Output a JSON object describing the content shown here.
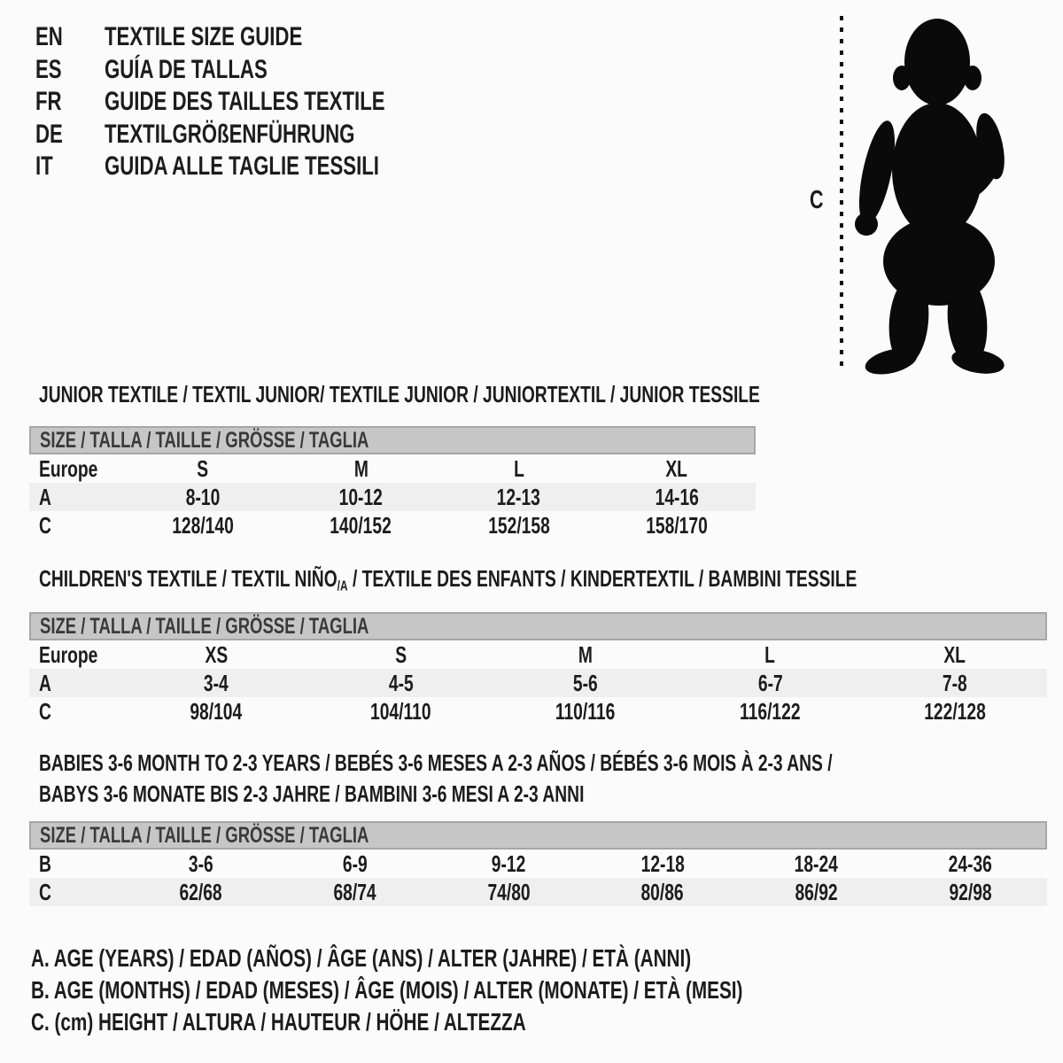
{
  "languages": [
    {
      "code": "EN",
      "title": "TEXTILE SIZE GUIDE"
    },
    {
      "code": "ES",
      "title": "GUÍA DE TALLAS"
    },
    {
      "code": "FR",
      "title": "GUIDE DES TAILLES TEXTILE"
    },
    {
      "code": "DE",
      "title": "TEXTILGRÖßENFÜHRUNG"
    },
    {
      "code": "IT",
      "title": "GUIDA ALLE TAGLIE TESSILI"
    }
  ],
  "figure": {
    "measure_label": "C",
    "icon": "toddler-silhouette"
  },
  "sections": [
    {
      "title": "JUNIOR TEXTILE / TEXTIL JUNIOR/ TEXTILE JUNIOR / JUNIORTEXTIL / JUNIOR TESSILE",
      "table": {
        "header": "SIZE / TALLA / TAILLE / GRÖSSE / TAGLIA",
        "rows": [
          {
            "label": "Europe",
            "cells": [
              "S",
              "M",
              "L",
              "XL"
            ]
          },
          {
            "label": "A",
            "cells": [
              "8-10",
              "10-12",
              "12-13",
              "14-16"
            ]
          },
          {
            "label": "C",
            "cells": [
              "128/140",
              "140/152",
              "152/158",
              "158/170"
            ]
          }
        ]
      }
    },
    {
      "title_pre": "CHILDREN'S TEXTILE / TEXTIL NIÑO",
      "title_sub": "/A",
      "title_post": " / TEXTILE DES ENFANTS / KINDERTEXTIL / BAMBINI TESSILE",
      "table": {
        "header": "SIZE / TALLA / TAILLE / GRÖSSE / TAGLIA",
        "rows": [
          {
            "label": "Europe",
            "cells": [
              "XS",
              "S",
              "M",
              "L",
              "XL"
            ]
          },
          {
            "label": "A",
            "cells": [
              "3-4",
              "4-5",
              "5-6",
              "6-7",
              "7-8"
            ]
          },
          {
            "label": "C",
            "cells": [
              "98/104",
              "104/110",
              "110/116",
              "116/122",
              "122/128"
            ]
          }
        ]
      }
    },
    {
      "title": "BABIES 3-6 MONTH TO 2-3 YEARS / BEBÉS 3-6 MESES A 2-3 AÑOS / BÉBÉS 3-6 MOIS À 2-3 ANS /",
      "title_line2": "BABYS 3-6 MONATE BIS 2-3 JAHRE / BAMBINI 3-6 MESI A 2-3 ANNI",
      "table": {
        "header": "SIZE / TALLA / TAILLE / GRÖSSE / TAGLIA",
        "rows": [
          {
            "label": "B",
            "cells": [
              "3-6",
              "6-9",
              "9-12",
              "12-18",
              "18-24",
              "24-36"
            ]
          },
          {
            "label": "C",
            "cells": [
              "62/68",
              "68/74",
              "74/80",
              "80/86",
              "86/92",
              "92/98"
            ]
          }
        ]
      }
    }
  ],
  "legend": [
    "A. AGE (YEARS) / EDAD (AÑOS) / ÂGE (ANS) / ALTER (JAHRE) / ETÀ (ANNI)",
    "B. AGE (MONTHS) / EDAD (MESES) / ÂGE (MOIS) / ALTER (MONATE) / ETÀ (MESI)",
    "C. (cm) HEIGHT / ALTURA / HAUTEUR / HÖHE / ALTEZZA"
  ],
  "colors": {
    "header_bar": "#c6c6c6",
    "header_bar_border": "#a6a6a6",
    "shaded_row": "#efefef",
    "text": "#1c1c1c",
    "silhouette": "#0a0a0a"
  }
}
